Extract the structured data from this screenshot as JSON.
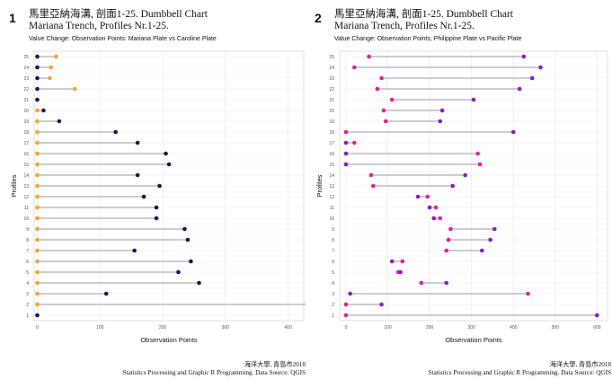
{
  "chart_data": [
    {
      "type": "dumbbell",
      "panel_number": "1",
      "title_line1": "馬里亞納海溝, 剖面1-25. Dumbbell Chart",
      "title_line2": "Mariana Trench, Profiles Nr.1-25.",
      "subtitle": "Value Change: Observation Points: Mariana Plate vs Caroline Plate",
      "xlabel": "Observation Points",
      "ylabel": "Profiles",
      "xlim": [
        -5,
        425
      ],
      "xticks": [
        0,
        100,
        200,
        300,
        400
      ],
      "grid": true,
      "legend": "none",
      "colors": {
        "start": "#f5a623",
        "end": "#1a1363",
        "segment": "#9a9aa8"
      },
      "categories": [
        "1",
        "2",
        "3",
        "4",
        "5",
        "6",
        "7",
        "8",
        "9",
        "10",
        "11",
        "12",
        "13",
        "14",
        "15",
        "16",
        "17",
        "18",
        "19",
        "20",
        "21",
        "22",
        "23",
        "24",
        "25"
      ],
      "series": [
        {
          "values": [
            0,
            0,
            0,
            0,
            0,
            0,
            0,
            0,
            0,
            0,
            0,
            0,
            0,
            0,
            0,
            0,
            0,
            0,
            0,
            0,
            0,
            60,
            20,
            22,
            30
          ]
        },
        {
          "values": [
            0,
            435,
            110,
            258,
            225,
            245,
            155,
            240,
            235,
            190,
            190,
            170,
            195,
            160,
            210,
            205,
            160,
            125,
            35,
            10,
            0,
            0,
            0,
            0,
            0
          ]
        }
      ],
      "footer_line1": "海洋大學, 青島市2018",
      "footer_line2": "Statistics Processing and Graphic R Programming. Data Source: QGIS"
    },
    {
      "type": "dumbbell",
      "panel_number": "2",
      "title_line1": "馬里亞納海溝, 剖面1-25. Dumbbell Chart",
      "title_line2": "Mariana Trench, Profiles Nr.1-25.",
      "subtitle": "Value Change: Observation Points; Philippine Plate vs Pacific Plate",
      "xlabel": "Observation Points",
      "ylabel": "Profiles",
      "xlim": [
        -15,
        625
      ],
      "xticks": [
        0,
        100,
        200,
        300,
        400,
        500,
        600
      ],
      "grid": true,
      "legend": "none",
      "colors": {
        "start": "#e81ca0",
        "end": "#8a1cc8",
        "segment": "#9a9aa8"
      },
      "categories": [
        "1",
        "2",
        "3",
        "4",
        "5",
        "6",
        "7",
        "8",
        "9",
        "10",
        "11",
        "12",
        "13",
        "14",
        "15",
        "16",
        "17",
        "18",
        "19",
        "20",
        "21",
        "22",
        "23",
        "24",
        "25"
      ],
      "series": [
        {
          "values": [
            0,
            0,
            435,
            180,
            125,
            135,
            240,
            245,
            250,
            225,
            215,
            195,
            65,
            60,
            320,
            315,
            20,
            0,
            95,
            90,
            110,
            75,
            85,
            20,
            55
          ]
        },
        {
          "values": [
            600,
            85,
            10,
            240,
            130,
            110,
            325,
            345,
            355,
            210,
            200,
            172,
            255,
            285,
            0,
            0,
            0,
            400,
            225,
            230,
            305,
            415,
            445,
            465,
            425
          ]
        }
      ],
      "footer_line1": "海洋大學, 青島市2018",
      "footer_line2": "Statistics Processing and Graphic R Programming. Data Source: QGIS"
    }
  ]
}
